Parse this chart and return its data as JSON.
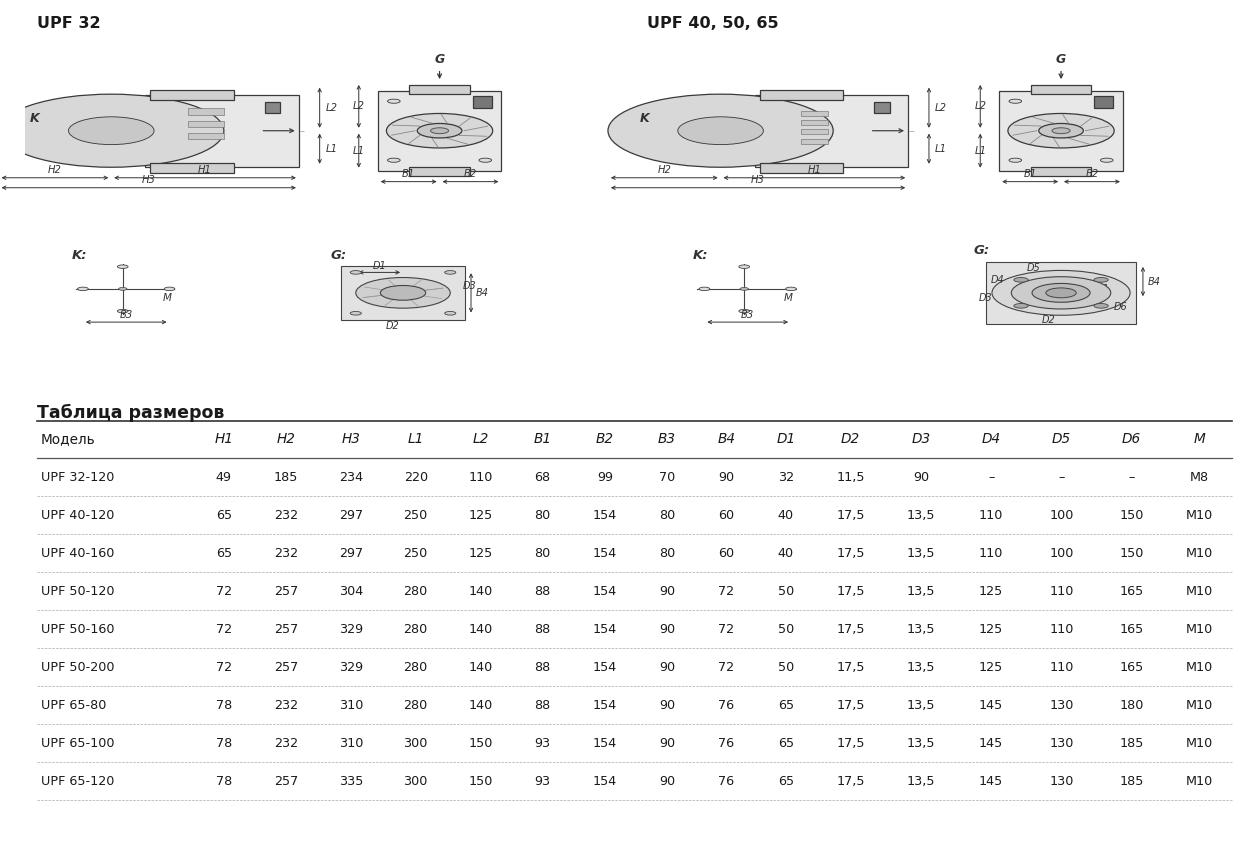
{
  "table_title": "Таблица размеров",
  "upf32_label": "UPF 32",
  "upf_40_50_65_label": "UPF 40, 50, 65",
  "columns": [
    "Модель",
    "H1",
    "H2",
    "H3",
    "L1",
    "L2",
    "B1",
    "B2",
    "B3",
    "B4",
    "D1",
    "D2",
    "D3",
    "D4",
    "D5",
    "D6",
    "M"
  ],
  "rows": [
    [
      "UPF 32-120",
      "49",
      "185",
      "234",
      "220",
      "110",
      "68",
      "99",
      "70",
      "90",
      "32",
      "11,5",
      "90",
      "–",
      "–",
      "–",
      "M8"
    ],
    [
      "UPF 40-120",
      "65",
      "232",
      "297",
      "250",
      "125",
      "80",
      "154",
      "80",
      "60",
      "40",
      "17,5",
      "13,5",
      "110",
      "100",
      "150",
      "M10"
    ],
    [
      "UPF 40-160",
      "65",
      "232",
      "297",
      "250",
      "125",
      "80",
      "154",
      "80",
      "60",
      "40",
      "17,5",
      "13,5",
      "110",
      "100",
      "150",
      "M10"
    ],
    [
      "UPF 50-120",
      "72",
      "257",
      "304",
      "280",
      "140",
      "88",
      "154",
      "90",
      "72",
      "50",
      "17,5",
      "13,5",
      "125",
      "110",
      "165",
      "M10"
    ],
    [
      "UPF 50-160",
      "72",
      "257",
      "329",
      "280",
      "140",
      "88",
      "154",
      "90",
      "72",
      "50",
      "17,5",
      "13,5",
      "125",
      "110",
      "165",
      "M10"
    ],
    [
      "UPF 50-200",
      "72",
      "257",
      "329",
      "280",
      "140",
      "88",
      "154",
      "90",
      "72",
      "50",
      "17,5",
      "13,5",
      "125",
      "110",
      "165",
      "M10"
    ],
    [
      "UPF 65-80",
      "78",
      "232",
      "310",
      "280",
      "140",
      "88",
      "154",
      "90",
      "76",
      "65",
      "17,5",
      "13,5",
      "145",
      "130",
      "180",
      "M10"
    ],
    [
      "UPF 65-100",
      "78",
      "232",
      "310",
      "300",
      "150",
      "93",
      "154",
      "90",
      "76",
      "65",
      "17,5",
      "13,5",
      "145",
      "130",
      "185",
      "M10"
    ],
    [
      "UPF 65-120",
      "78",
      "257",
      "335",
      "300",
      "150",
      "93",
      "154",
      "90",
      "76",
      "65",
      "17,5",
      "13,5",
      "145",
      "130",
      "185",
      "M10"
    ]
  ],
  "col_widths": [
    1.45,
    0.55,
    0.6,
    0.6,
    0.6,
    0.6,
    0.55,
    0.6,
    0.55,
    0.55,
    0.55,
    0.65,
    0.65,
    0.65,
    0.65,
    0.65,
    0.6
  ],
  "bg_white": "#ffffff",
  "text_color": "#1a1a1a"
}
